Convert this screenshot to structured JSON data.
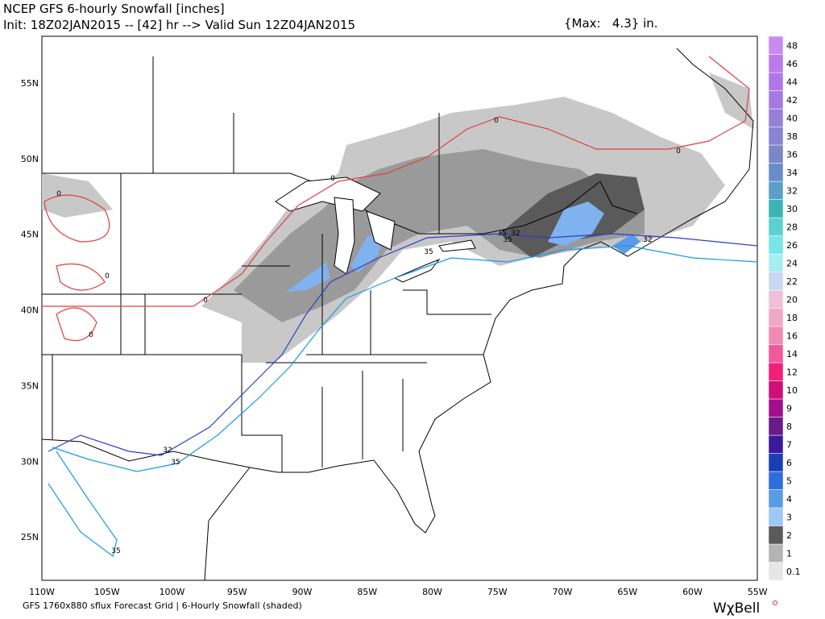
{
  "header": {
    "line1": "NCEP GFS 6-hourly Snowfall [inches]",
    "line2": "Init: 18Z02JAN2015 -- [42] hr --> Valid Sun 12Z04JAN2015",
    "max": "{Max:   4.3} in."
  },
  "map": {
    "lat_labels": [
      "55N",
      "50N",
      "45N",
      "40N",
      "35N",
      "30N",
      "25N"
    ],
    "lon_labels": [
      "110W",
      "105W",
      "100W",
      "95W",
      "90W",
      "85W",
      "80W",
      "75W",
      "70W",
      "65W",
      "60W",
      "55W"
    ],
    "contour_labels": [
      "0",
      "0",
      "0",
      "0",
      "0",
      "0",
      "0",
      "32",
      "35",
      "32",
      "35",
      "35",
      "35",
      "32",
      "35"
    ]
  },
  "colorbar": {
    "labels": [
      "0.1",
      "1",
      "2",
      "3",
      "4",
      "5",
      "6",
      "7",
      "8",
      "9",
      "10",
      "12",
      "14",
      "16",
      "18",
      "20",
      "22",
      "24",
      "26",
      "28",
      "30",
      "32",
      "34",
      "36",
      "38",
      "40",
      "42",
      "44",
      "46",
      "48"
    ],
    "colors": [
      "#e6e6e6",
      "#b4b4b4",
      "#5a5a5a",
      "#9ec8f5",
      "#5a9be6",
      "#2e6fdc",
      "#1a3fb4",
      "#3a1a9a",
      "#6a1a8a",
      "#a0108a",
      "#d0107a",
      "#f0207a",
      "#f05a9a",
      "#f08ab4",
      "#f0a8c8",
      "#f0c0d8",
      "#c8d8f0",
      "#a8ecf0",
      "#78e6e6",
      "#5ad2d2",
      "#3cb4b4",
      "#5aa0c8",
      "#6a8cc8",
      "#7a88c8",
      "#8a84d2",
      "#9680d8",
      "#a47ae0",
      "#b078e6",
      "#bc7aea",
      "#c88cf0"
    ]
  },
  "footer": {
    "left": "GFS 1760x880 sflux Forecast Grid | 6-Hourly Snowfall (shaded)",
    "brand": "WχBell"
  }
}
